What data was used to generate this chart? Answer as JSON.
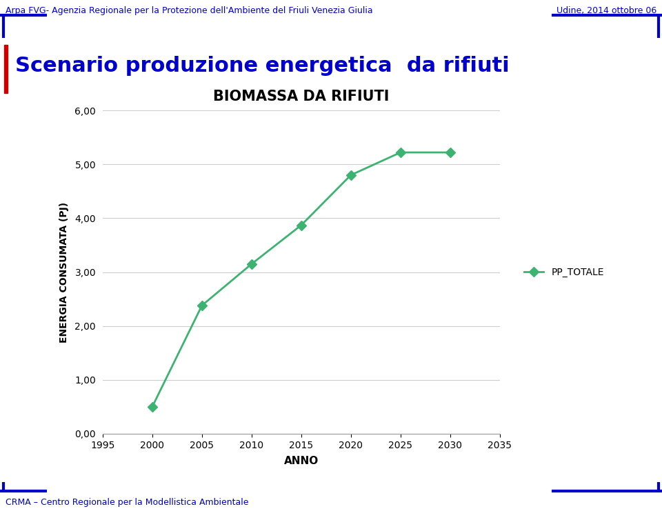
{
  "header_left": "Arpa FVG- Agenzia Regionale per la Protezione dell'Ambiente del Friuli Venezia Giulia",
  "header_right": "Udine, 2014 ottobre 06",
  "footer_left": "CRMA – Centro Regionale per la Modellistica Ambientale",
  "slide_title": "Scenario produzione energetica  da rifiuti",
  "chart_title": "BIOMASSA DA RIFIUTI",
  "xlabel": "ANNO",
  "ylabel": "ENERGIA CONSUMATA (PJ)",
  "legend_label": "PP_TOTALE",
  "x": [
    2000,
    2005,
    2010,
    2015,
    2020,
    2025,
    2030
  ],
  "y": [
    0.5,
    2.38,
    3.15,
    3.87,
    4.8,
    5.22,
    5.22
  ],
  "xlim": [
    1995,
    2035
  ],
  "xticks": [
    1995,
    2000,
    2005,
    2010,
    2015,
    2020,
    2025,
    2030,
    2035
  ],
  "ylim": [
    0.0,
    6.0
  ],
  "yticks": [
    0.0,
    1.0,
    2.0,
    3.0,
    4.0,
    5.0,
    6.0
  ],
  "ytick_labels": [
    "0,00",
    "1,00",
    "2,00",
    "3,00",
    "4,00",
    "5,00",
    "6,00"
  ],
  "line_color": "#3CB371",
  "marker": "D",
  "marker_color": "#3CB371",
  "marker_size": 7,
  "line_width": 2.0,
  "header_color": "#0000CC",
  "slide_title_color": "#0000CC",
  "footer_color": "#0000CC",
  "bg_color": "#FFFFFF",
  "grid_color": "#CCCCCC",
  "accent_color": "#CC0000",
  "chart_title_color": "#000000",
  "axis_text_color": "#000000"
}
